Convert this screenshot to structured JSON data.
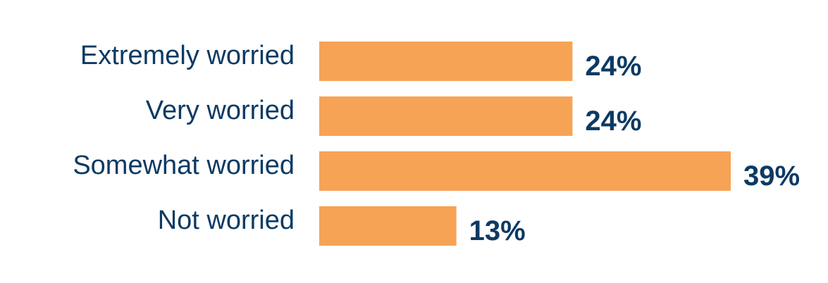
{
  "chart_data": {
    "type": "bar",
    "orientation": "horizontal",
    "categories": [
      "Extremely worried",
      "Very worried",
      "Somewhat worried",
      "Not worried"
    ],
    "values": [
      24,
      24,
      39,
      13
    ],
    "value_labels": [
      "24%",
      "24%",
      "39%",
      "13%"
    ],
    "unit": "%",
    "colors": {
      "bar": "#f7a355",
      "text": "#0c3a63"
    }
  }
}
